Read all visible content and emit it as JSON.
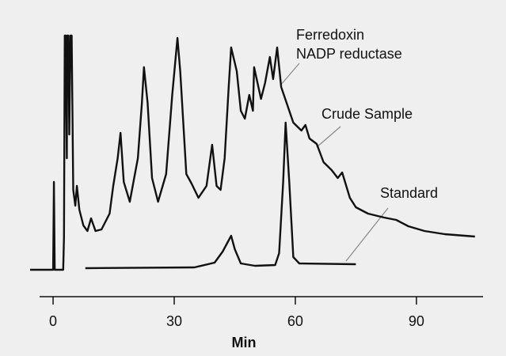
{
  "chart_data": {
    "type": "line",
    "xlabel": "Min",
    "annotations": [
      "Ferredoxin",
      "NADP reductase"
    ],
    "xlim": [
      -5.7,
      106.5
    ],
    "xticks": [
      0,
      30,
      60,
      90
    ],
    "ylim": [
      0,
      300
    ],
    "series": [
      {
        "name": "Crude Sample",
        "color": "#111111",
        "x": [
          -5.7,
          0,
          0.2,
          0.4,
          2.5,
          2.7,
          2.9,
          3.1,
          3.4,
          3.5,
          3.8,
          4.0,
          4.3,
          4.6,
          5,
          5.5,
          5.9,
          6.5,
          7.5,
          8.5,
          9.4,
          10.5,
          12,
          14,
          14.9,
          16,
          16.7,
          17.5,
          19,
          21,
          22,
          22.5,
          23.4,
          24.5,
          26,
          28,
          29.5,
          30.8,
          31.5,
          33,
          34.3,
          36,
          38,
          39.4,
          40.5,
          41.5,
          42.5,
          43.5,
          44.1,
          45.5,
          46.5,
          47.5,
          48.6,
          49.5,
          49.8,
          51.5,
          52.5,
          53.7,
          54.5,
          55.5,
          56.5,
          57.5,
          58.5,
          59.5,
          61.5,
          62.5,
          63.5,
          65.3,
          67,
          69,
          70.5,
          71.6,
          73.5,
          75,
          78,
          82,
          85,
          88,
          92,
          97,
          102,
          104.5
        ],
        "values": [
          0,
          0,
          111,
          0,
          0,
          41,
          296,
          296,
          141,
          296,
          296,
          171,
          296,
          296,
          101,
          81,
          106,
          76,
          56,
          49,
          65,
          49,
          51,
          71,
          106,
          141,
          173,
          111,
          86,
          141,
          211,
          256,
          211,
          116,
          86,
          121,
          221,
          293,
          251,
          121,
          109,
          91,
          106,
          158,
          106,
          101,
          141,
          231,
          281,
          251,
          201,
          191,
          221,
          201,
          256,
          216,
          236,
          269,
          241,
          281,
          231,
          216,
          201,
          186,
          176,
          183,
          166,
          159,
          136,
          126,
          116,
          123,
          91,
          79,
          71,
          66,
          63,
          55,
          49,
          45,
          43,
          42
        ]
      },
      {
        "name": "Standard",
        "color": "#111111",
        "x": [
          8,
          35,
          40,
          42,
          44.1,
          45,
          46.5,
          50,
          55,
          56,
          57,
          57.6,
          58.5,
          59.5,
          61,
          75
        ],
        "values": [
          2,
          3,
          9,
          23,
          43,
          26,
          8,
          5,
          6,
          21,
          111,
          186,
          111,
          16,
          8,
          7
        ]
      }
    ]
  }
}
